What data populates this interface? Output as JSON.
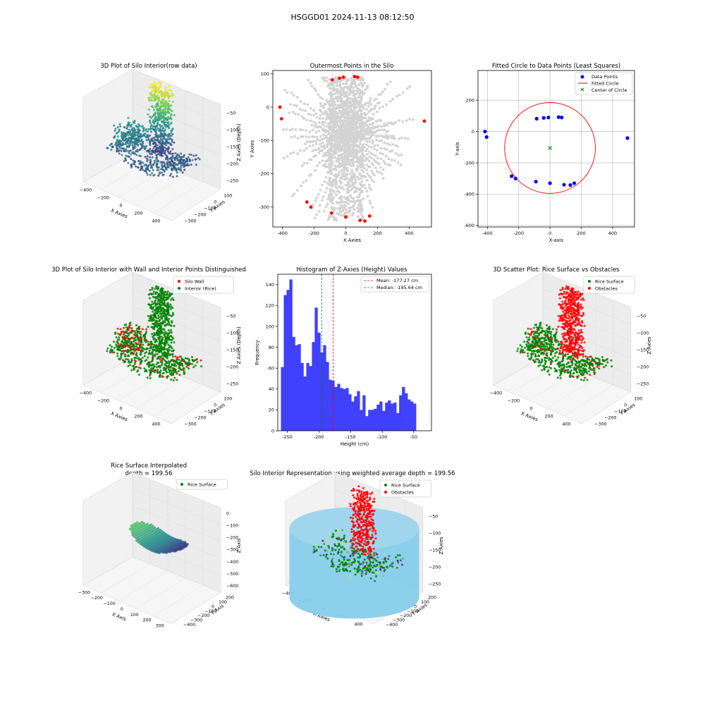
{
  "figure": {
    "suptitle": "HSGGD01 2024-11-13 08:12:50"
  },
  "colors": {
    "red": "#ff0000",
    "blue": "#0000ff",
    "green": "#008000",
    "gray": "#d3d3d3",
    "hist": "#4040ff",
    "skyblue": "#87ceeb",
    "viridis": [
      "#440154",
      "#3b528b",
      "#21918c",
      "#5ec962",
      "#fde725"
    ]
  },
  "chart_data": [
    {
      "id": "raw3d",
      "type": "scatter3d",
      "title": "3D Plot of Silo Interior(row data)",
      "xlabel": "X Axies",
      "ylabel": "Y Axies",
      "zlabel": "Z Axies (Depth)",
      "xticks": [
        "−400",
        "−200",
        "0",
        "200",
        "400"
      ],
      "yticks": [
        "−300",
        "−200",
        "−100",
        "0",
        "100"
      ],
      "zticks": [
        "−50",
        "−100",
        "−150",
        "−200",
        "−250"
      ],
      "colormap": "viridis"
    },
    {
      "id": "outer",
      "type": "scatter",
      "title": "Outermost Points in the Silo",
      "xlabel": "X Axies",
      "ylabel": "Y Axies",
      "xlim": [
        -460,
        540
      ],
      "ylim": [
        -360,
        110
      ],
      "xticks": [
        -400,
        -200,
        0,
        200,
        400
      ],
      "yticks": [
        -300,
        -200,
        -100,
        0,
        100
      ],
      "outer_points": [
        [
          -415,
          0
        ],
        [
          -405,
          -35
        ],
        [
          -85,
          82
        ],
        [
          -40,
          87
        ],
        [
          -15,
          90
        ],
        [
          55,
          92
        ],
        [
          75,
          90
        ],
        [
          495,
          -42
        ],
        [
          -245,
          -285
        ],
        [
          -220,
          -300
        ],
        [
          -90,
          -318
        ],
        [
          0,
          -330
        ],
        [
          90,
          -340
        ],
        [
          120,
          -342
        ],
        [
          150,
          -327
        ]
      ]
    },
    {
      "id": "circle",
      "type": "scatter",
      "title": "Fitted Circle to Data Points (Least Squares)",
      "xlabel": "X-axis",
      "ylabel": "Y-axis",
      "xlim": [
        -460,
        540
      ],
      "ylim": [
        -610,
        390
      ],
      "xticks": [
        -400,
        -200,
        0,
        200,
        400
      ],
      "yticks": [
        -600,
        -400,
        -200,
        0,
        200
      ],
      "grid": true,
      "legend": "upper-right",
      "legend_entries": [
        "Data Points",
        "Fitted Circle",
        "Center of Circle"
      ],
      "points": [
        [
          -415,
          0
        ],
        [
          -405,
          -35
        ],
        [
          -85,
          82
        ],
        [
          -40,
          87
        ],
        [
          -10,
          90
        ],
        [
          55,
          92
        ],
        [
          75,
          90
        ],
        [
          495,
          -42
        ],
        [
          -245,
          -285
        ],
        [
          -220,
          -300
        ],
        [
          -90,
          -320
        ],
        [
          0,
          -330
        ],
        [
          90,
          -340
        ],
        [
          130,
          -342
        ],
        [
          155,
          -330
        ]
      ],
      "circle": {
        "cx": 0,
        "cy": -105,
        "r": 290
      }
    },
    {
      "id": "wall3d",
      "type": "scatter3d",
      "title": "3D Plot of Silo Interior with Wall and Interior Points Distinguished",
      "xlabel": "X Axies",
      "ylabel": "Y Axies",
      "zlabel": "Z Axies (Depth)",
      "xticks": [
        "−400",
        "−200",
        "0",
        "200",
        "400"
      ],
      "yticks": [
        "−300",
        "−200",
        "−100",
        "0",
        "100"
      ],
      "zticks": [
        "−50",
        "−100",
        "−150",
        "−200",
        "−250"
      ],
      "legend_entries": [
        "Silo Wall",
        "Interior (Rice)"
      ]
    },
    {
      "id": "hist",
      "type": "histogram",
      "title": "Histogram of Z-Axies (Height) Values",
      "xlabel": "Height (cm)",
      "ylabel": "Frequency",
      "xlim": [
        -265,
        -22
      ],
      "ylim": [
        0,
        150
      ],
      "xticks": [
        -250,
        -200,
        -150,
        -100,
        -50
      ],
      "yticks": [
        0,
        20,
        40,
        60,
        80,
        100,
        120,
        140
      ],
      "bin_start": -260,
      "bin_width": 4.45,
      "counts": [
        61,
        130,
        135,
        145,
        90,
        82,
        83,
        65,
        52,
        65,
        62,
        85,
        118,
        94,
        75,
        82,
        66,
        49,
        48,
        42,
        45,
        41,
        40,
        41,
        35,
        28,
        33,
        38,
        20,
        34,
        14,
        20,
        20,
        21,
        25,
        28,
        19,
        27,
        29,
        26,
        27,
        17,
        34,
        42,
        36,
        30,
        28,
        26
      ],
      "mean": -177.27,
      "median": -195.64,
      "legend_entries": [
        "Mean: -177.27 cm",
        "Median: -195.64 cm"
      ]
    },
    {
      "id": "obst3d",
      "type": "scatter3d",
      "title": "3D Scatter Plot: Rice Surface vs Obstacles",
      "xlabel": "X Axies",
      "ylabel": "Y Axies",
      "zlabel": "Z Axies",
      "xticks": [
        "−400",
        "−200",
        "0",
        "200",
        "400"
      ],
      "yticks": [
        "−300",
        "−200",
        "−100",
        "0",
        "100"
      ],
      "zticks": [
        "−50",
        "−100",
        "−150",
        "−200",
        "−250"
      ],
      "legend_entries": [
        "Rice Surface",
        "Obstacles"
      ]
    },
    {
      "id": "interp3d",
      "type": "surface3d",
      "title": "Rice Surface Interpolated",
      "subtitle": "depth = 199.56",
      "xlabel": "X Axis",
      "ylabel": "Y Axis",
      "zlabel": "Z Axis",
      "xticks": [
        "−300",
        "−200",
        "−100",
        "0",
        "100",
        "200",
        "300"
      ],
      "yticks": [
        "−400",
        "−300",
        "−200",
        "−100",
        "0",
        "100",
        "200"
      ],
      "zticks": [
        "0",
        "−100",
        "−200",
        "−300",
        "−400",
        "−500",
        "−600"
      ],
      "legend_entries": [
        "Rice Surface"
      ]
    },
    {
      "id": "silo3d",
      "type": "surface3d",
      "title": "Silo Interior Representation using weighted average depth = 199.56",
      "xlabel": "X Axies",
      "ylabel": "Y Axies",
      "zlabel": "Z Axies",
      "xticks": [
        "−400",
        "−200",
        "0",
        "200",
        "400"
      ],
      "yticks": [
        "−400",
        "−300",
        "−200",
        "−100",
        "0",
        "100",
        "200"
      ],
      "zticks": [
        "−50",
        "−100",
        "−150",
        "−200",
        "−250"
      ],
      "legend_entries": [
        "Rice Surface",
        "Obstacles"
      ]
    }
  ]
}
